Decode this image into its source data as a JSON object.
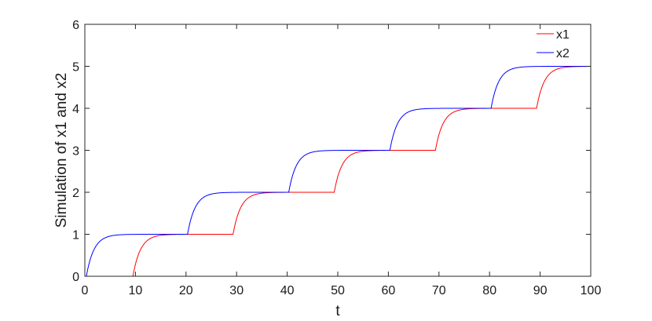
{
  "chart_data": {
    "type": "line",
    "xlabel": "t",
    "ylabel": "Simulation of x1 and x2",
    "xlim": [
      0,
      100
    ],
    "ylim": [
      0,
      6
    ],
    "xticks": [
      0,
      10,
      20,
      30,
      40,
      50,
      60,
      70,
      80,
      90,
      100
    ],
    "yticks": [
      0,
      1,
      2,
      3,
      4,
      5,
      6
    ],
    "grid": false,
    "legend_position": "top-right",
    "series": [
      {
        "name": "x1",
        "color": "#ff0000",
        "step_times": [
          9.5,
          29.3,
          49.3,
          69.3,
          89.3
        ],
        "levels": [
          0,
          1,
          2,
          3,
          4,
          5
        ]
      },
      {
        "name": "x2",
        "color": "#0000ff",
        "step_times": [
          0.3,
          20.3,
          40.3,
          60.3,
          80.3
        ],
        "levels": [
          0,
          1,
          2,
          3,
          4,
          5
        ]
      }
    ]
  }
}
